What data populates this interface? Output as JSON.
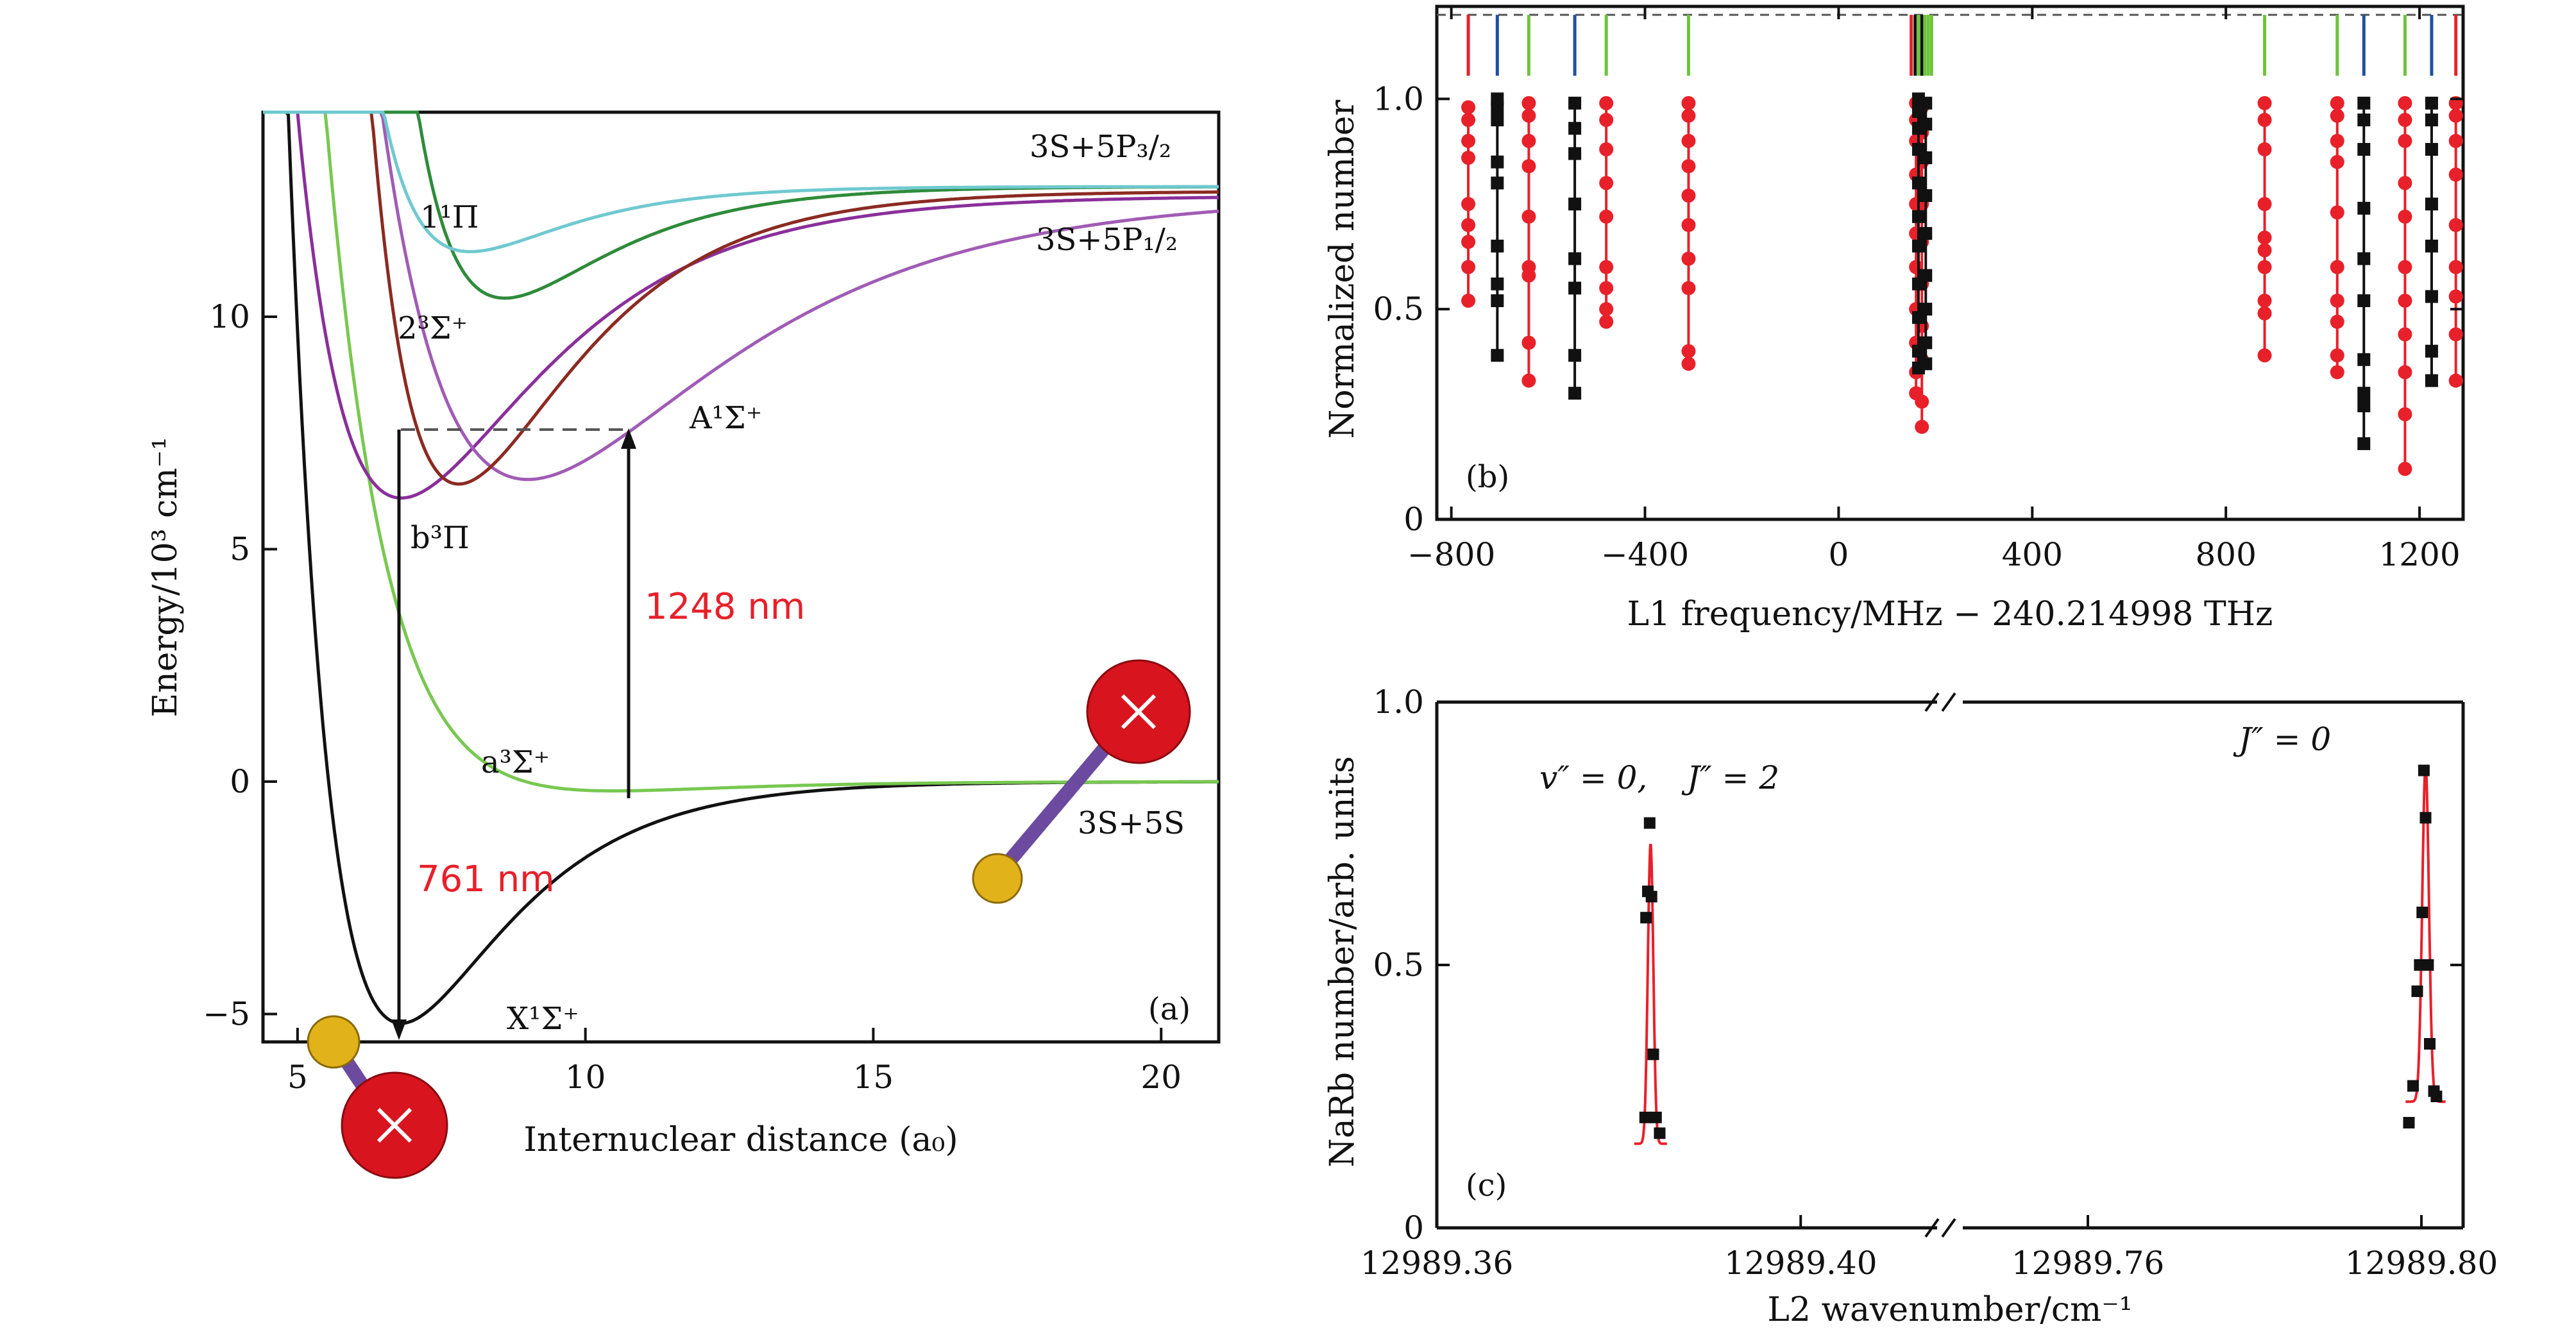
{
  "colors": {
    "red": "#e8202a",
    "black": "#111111",
    "blue": "#1f4fa0",
    "green": "#6cc33b",
    "cyan": "#6fc9d0",
    "darkgreen": "#2e8b3a",
    "maroon": "#8b2a22",
    "purple": "#8a2f9a",
    "violet": "#a05cb5",
    "lightgreen": "#78c850",
    "annotation": "#e8202a",
    "dashed": "#555555",
    "sodium": "#e2b21a",
    "rubidium": "#d8141f",
    "bond": "#6b4aa0"
  },
  "chart_data": [
    {
      "panel": "a",
      "type": "line",
      "panel_label": "(a)",
      "xlabel": "Internuclear distance (a₀)",
      "ylabel": "Energy/10³ cm⁻¹",
      "xlim": [
        4.4,
        21.0
      ],
      "ylim": [
        -5.6,
        14.4
      ],
      "xticks": [
        5,
        10,
        15,
        20
      ],
      "yticks": [
        -5,
        0,
        5,
        10
      ],
      "xtick_labels": [
        "5",
        "10",
        "15",
        "20"
      ],
      "ytick_labels": [
        "−5",
        "0",
        "5",
        "10"
      ],
      "series": [
        {
          "name": "X¹Σ⁺",
          "color": "black",
          "Re": 6.8,
          "De": 5200,
          "a": 0.55,
          "asym": 0
        },
        {
          "name": "a³Σ⁺",
          "color": "lightgreen",
          "Re": 10.5,
          "De": 200,
          "a": 0.45,
          "asym": 0
        },
        {
          "name": "b³Π",
          "color": "purple",
          "Re": 6.8,
          "De": 6500,
          "a": 0.42,
          "asym": 12600
        },
        {
          "name": "A¹Σ⁺",
          "color": "violet",
          "Re": 9.0,
          "De": 6100,
          "a": 0.3,
          "asym": 12600
        },
        {
          "name": "2³Σ⁺",
          "color": "maroon",
          "Re": 7.8,
          "De": 6300,
          "a": 0.5,
          "asym": 12700
        },
        {
          "name": "1¹Π",
          "color": "darkgreen",
          "Re": 8.6,
          "De": 2400,
          "a": 0.55,
          "asym": 12800
        },
        {
          "name": "1¹Π (upper)",
          "color": "cyan",
          "Re": 8.0,
          "De": 1400,
          "a": 0.6,
          "asym": 12800
        }
      ],
      "labels": [
        "3S+5P₃/₂",
        "3S+5P₁/₂",
        "1¹Π",
        "2³Σ⁺",
        "A¹Σ⁺",
        "b³Π",
        "a³Σ⁺",
        "3S+5S",
        "X¹Σ⁺"
      ],
      "annotations": [
        {
          "text": "1248 nm",
          "from_energy": -300,
          "to_energy": 7600,
          "at_r": 10.4
        },
        {
          "text": "761 nm",
          "from_energy": 7600,
          "to_energy": -5200,
          "at_r": 6.8
        }
      ]
    },
    {
      "panel": "b",
      "type": "scatter",
      "panel_label": "(b)",
      "xlabel": "L1 frequency/MHz − 240.214998 THz",
      "ylabel": "Normalized number",
      "xlim": [
        -830,
        1290
      ],
      "ylim": [
        0,
        1.22
      ],
      "xticks": [
        -800,
        -400,
        0,
        400,
        800,
        1200
      ],
      "xtick_labels": [
        "−800",
        "−400",
        "0",
        "400",
        "800",
        "1200"
      ],
      "yticks": [
        0,
        0.5,
        1.0
      ],
      "ytick_labels": [
        "0",
        "0.5",
        "1.0"
      ],
      "marker_line_y": 1.2,
      "stick_markers": [
        {
          "x": -765,
          "color": "red"
        },
        {
          "x": -705,
          "color": "blue"
        },
        {
          "x": -640,
          "color": "green"
        },
        {
          "x": -545,
          "color": "blue"
        },
        {
          "x": -480,
          "color": "green"
        },
        {
          "x": -310,
          "color": "green"
        },
        {
          "x": 150,
          "color": "red"
        },
        {
          "x": 158,
          "color": "black"
        },
        {
          "x": 165,
          "color": "green"
        },
        {
          "x": 172,
          "color": "black"
        },
        {
          "x": 178,
          "color": "green"
        },
        {
          "x": 185,
          "color": "green"
        },
        {
          "x": 192,
          "color": "green"
        },
        {
          "x": 880,
          "color": "green"
        },
        {
          "x": 1030,
          "color": "green"
        },
        {
          "x": 1085,
          "color": "blue"
        },
        {
          "x": 1170,
          "color": "green"
        },
        {
          "x": 1225,
          "color": "blue"
        },
        {
          "x": 1275,
          "color": "red"
        }
      ],
      "series": [
        {
          "name": "red resonances",
          "color": "red",
          "marker": "circle",
          "columns": [
            {
              "x": -765,
              "y": [
                0.98,
                0.95,
                0.9,
                0.86,
                0.75,
                0.7,
                0.66,
                0.6,
                0.52
              ]
            },
            {
              "x": -640,
              "y": [
                0.99,
                0.96,
                0.9,
                0.84,
                0.72,
                0.6,
                0.58,
                0.42,
                0.33
              ]
            },
            {
              "x": -480,
              "y": [
                0.99,
                0.95,
                0.88,
                0.8,
                0.72,
                0.6,
                0.55,
                0.5,
                0.47
              ]
            },
            {
              "x": -310,
              "y": [
                0.99,
                0.96,
                0.9,
                0.84,
                0.77,
                0.7,
                0.62,
                0.55,
                0.4,
                0.37
              ]
            },
            {
              "x": 880,
              "y": [
                0.99,
                0.95,
                0.88,
                0.75,
                0.67,
                0.64,
                0.6,
                0.52,
                0.49,
                0.39
              ]
            },
            {
              "x": 1030,
              "y": [
                0.99,
                0.96,
                0.9,
                0.85,
                0.73,
                0.6,
                0.52,
                0.47,
                0.39,
                0.35
              ]
            },
            {
              "x": 1170,
              "y": [
                0.99,
                0.95,
                0.9,
                0.8,
                0.72,
                0.6,
                0.52,
                0.44,
                0.35,
                0.25,
                0.12
              ]
            },
            {
              "x": 1275,
              "y": [
                0.99,
                0.96,
                0.9,
                0.82,
                0.7,
                0.6,
                0.53,
                0.44,
                0.33
              ]
            },
            {
              "x": 160,
              "y": [
                0.99,
                0.95,
                0.9,
                0.82,
                0.75,
                0.68,
                0.6,
                0.5,
                0.42,
                0.35,
                0.3
              ]
            },
            {
              "x": 172,
              "y": [
                0.98,
                0.92,
                0.85,
                0.75,
                0.66,
                0.56,
                0.46,
                0.38,
                0.28,
                0.22
              ]
            }
          ]
        },
        {
          "name": "black resonances",
          "color": "black",
          "marker": "square",
          "columns": [
            {
              "x": -705,
              "y": [
                1.0,
                0.98,
                0.95,
                0.85,
                0.8,
                0.65,
                0.56,
                0.52,
                0.39
              ]
            },
            {
              "x": -545,
              "y": [
                0.99,
                0.93,
                0.87,
                0.75,
                0.62,
                0.55,
                0.39,
                0.3
              ]
            },
            {
              "x": 1085,
              "y": [
                0.99,
                0.95,
                0.88,
                0.74,
                0.62,
                0.52,
                0.38,
                0.3,
                0.27,
                0.18
              ]
            },
            {
              "x": 1225,
              "y": [
                0.99,
                0.95,
                0.88,
                0.75,
                0.65,
                0.53,
                0.4,
                0.33
              ]
            },
            {
              "x": 165,
              "y": [
                1.0,
                0.97,
                0.93,
                0.88,
                0.8,
                0.72,
                0.65,
                0.56,
                0.48,
                0.4,
                0.36
              ]
            },
            {
              "x": 180,
              "y": [
                0.99,
                0.94,
                0.86,
                0.77,
                0.68,
                0.58,
                0.5,
                0.42,
                0.37
              ]
            }
          ]
        }
      ]
    },
    {
      "panel": "c",
      "type": "line",
      "panel_label": "(c)",
      "xlabel": "L2 wavenumber/cm⁻¹",
      "ylabel": "NaRb number/arb. units",
      "ylim": [
        0,
        1.0
      ],
      "yticks": [
        0,
        0.5,
        1.0
      ],
      "ytick_labels": [
        "0",
        "0.5",
        "1.0"
      ],
      "broken_axis": true,
      "segments": [
        {
          "xlim": [
            12989.36,
            12989.415
          ],
          "xticks": [
            12989.36,
            12989.4
          ],
          "xtick_labels": [
            "12989.36",
            "12989.40"
          ]
        },
        {
          "xlim": [
            12989.745,
            12989.805
          ],
          "xticks": [
            12989.76,
            12989.8
          ],
          "xtick_labels": [
            "12989.76",
            "12989.80"
          ]
        }
      ],
      "peaks": [
        {
          "label_v": "v″ = 0,",
          "label_J": "J″ = 2",
          "center": 12989.3835,
          "amplitude": 0.57,
          "baseline": 0.16,
          "width": 0.0006,
          "points": [
            [
              12989.3829,
              0.21
            ],
            [
              12989.383,
              0.59
            ],
            [
              12989.3832,
              0.64
            ],
            [
              12989.3834,
              0.77
            ],
            [
              12989.3836,
              0.63
            ],
            [
              12989.3838,
              0.33
            ],
            [
              12989.3841,
              0.21
            ],
            [
              12989.3845,
              0.18
            ]
          ]
        },
        {
          "label_J": "J″ = 0",
          "center": 12989.8005,
          "amplitude": 0.64,
          "baseline": 0.24,
          "width": 0.0008,
          "points": [
            [
              12989.7985,
              0.2
            ],
            [
              12989.799,
              0.27
            ],
            [
              12989.7995,
              0.45
            ],
            [
              12989.7998,
              0.5
            ],
            [
              12989.8001,
              0.6
            ],
            [
              12989.8003,
              0.87
            ],
            [
              12989.8005,
              0.78
            ],
            [
              12989.8008,
              0.5
            ],
            [
              12989.801,
              0.35
            ],
            [
              12989.8015,
              0.26
            ],
            [
              12989.8018,
              0.25
            ]
          ]
        }
      ]
    }
  ]
}
